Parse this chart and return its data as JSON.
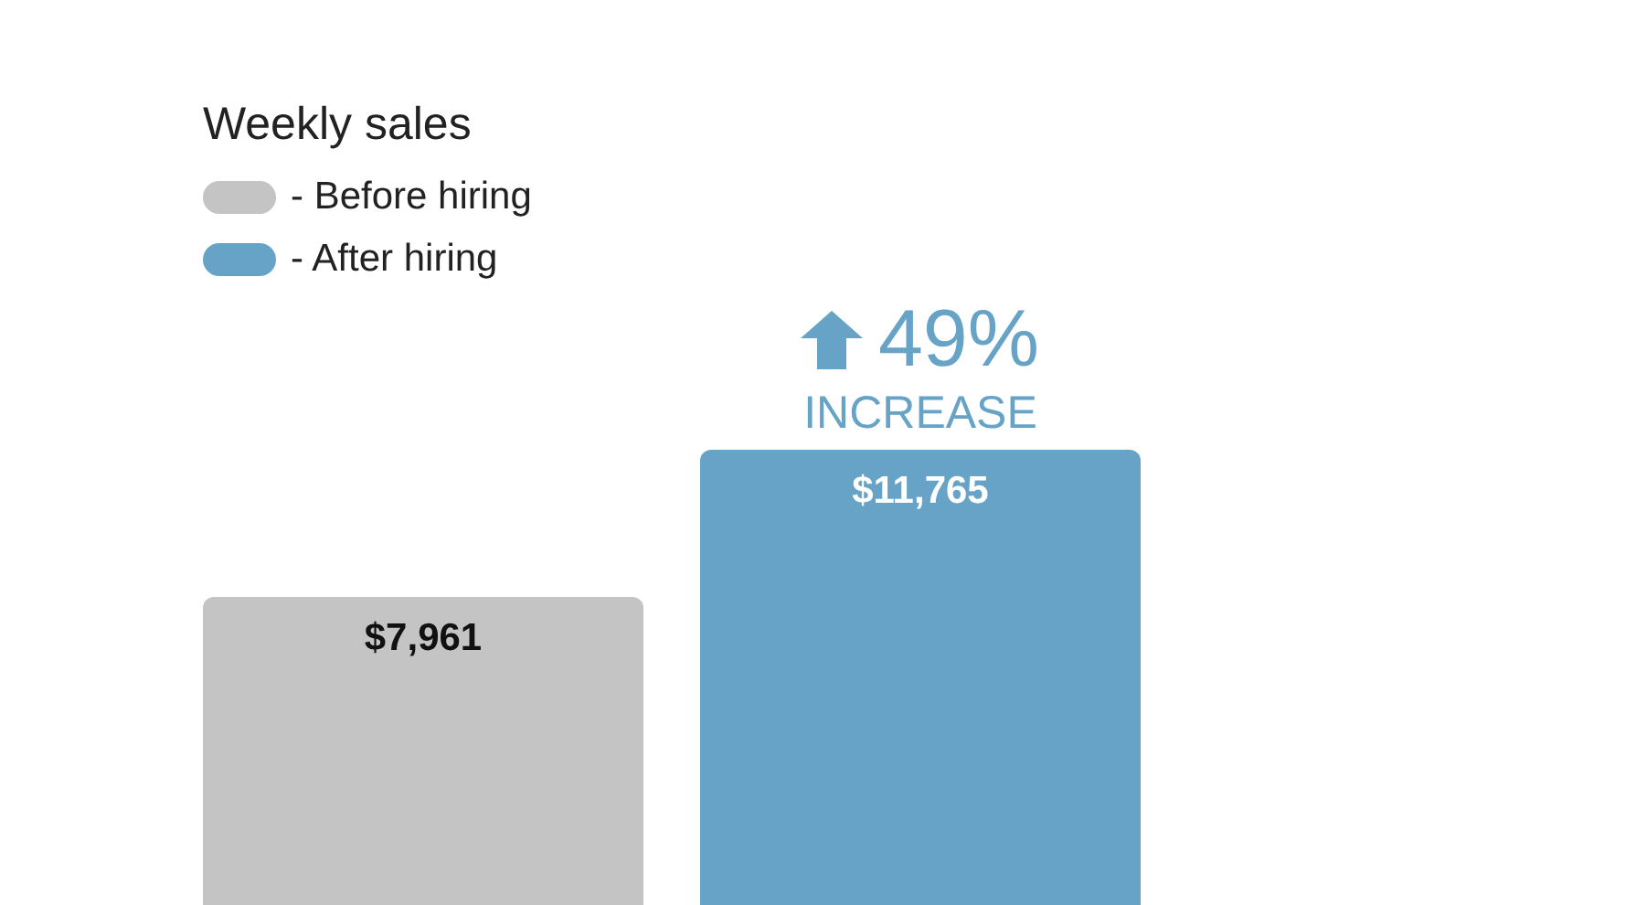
{
  "chart_data": {
    "type": "bar",
    "legend_title": "Weekly sales",
    "categories": [
      null
    ],
    "series": [
      {
        "name": "- Before hiring",
        "color": "#c4c4c4",
        "values": [
          7961
        ],
        "value_labels": [
          "$7,961"
        ]
      },
      {
        "name": "- After hiring",
        "color": "#66a3c7",
        "values": [
          11765
        ],
        "value_labels": [
          "$11,765"
        ]
      }
    ],
    "annotations": [
      "49%",
      "INCREASE"
    ],
    "legend": "top left"
  }
}
